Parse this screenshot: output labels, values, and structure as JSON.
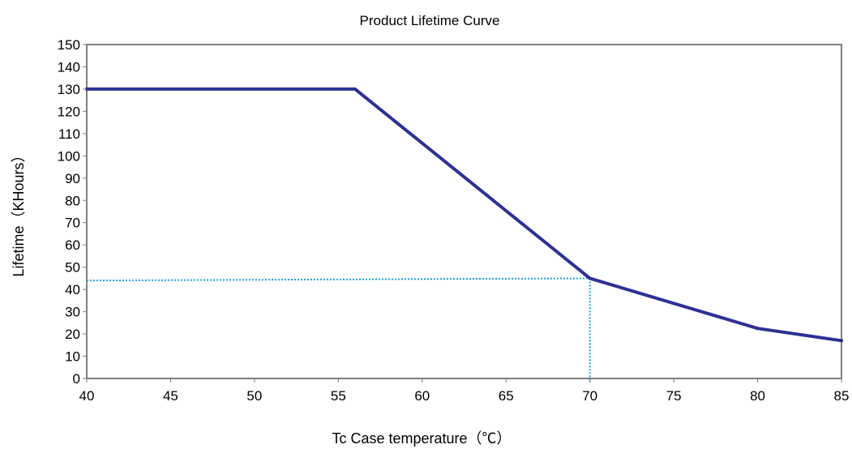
{
  "chart_data": {
    "type": "line",
    "title": "Product Lifetime Curve",
    "xlabel": "Tc Case temperature（℃）",
    "ylabel": "Lifetime（KHours）",
    "xlim": [
      40,
      85
    ],
    "ylim": [
      0,
      150
    ],
    "x_ticks": [
      "40",
      "45",
      "50",
      "55",
      "60",
      "65",
      "70",
      "75",
      "80",
      "85"
    ],
    "y_ticks": [
      "0",
      "10",
      "20",
      "30",
      "40",
      "50",
      "60",
      "70",
      "80",
      "90",
      "100",
      "110",
      "120",
      "130",
      "140",
      "150"
    ],
    "grid": false,
    "legend": "none",
    "series": [
      {
        "color": "#2e3192",
        "x": [
          40,
          56,
          70,
          80,
          85
        ],
        "y": [
          130,
          130,
          45,
          22.5,
          17
        ]
      }
    ],
    "reference_lines": {
      "color": "#1ea0e6",
      "style": "dotted",
      "x": 70,
      "y": 45
    }
  }
}
